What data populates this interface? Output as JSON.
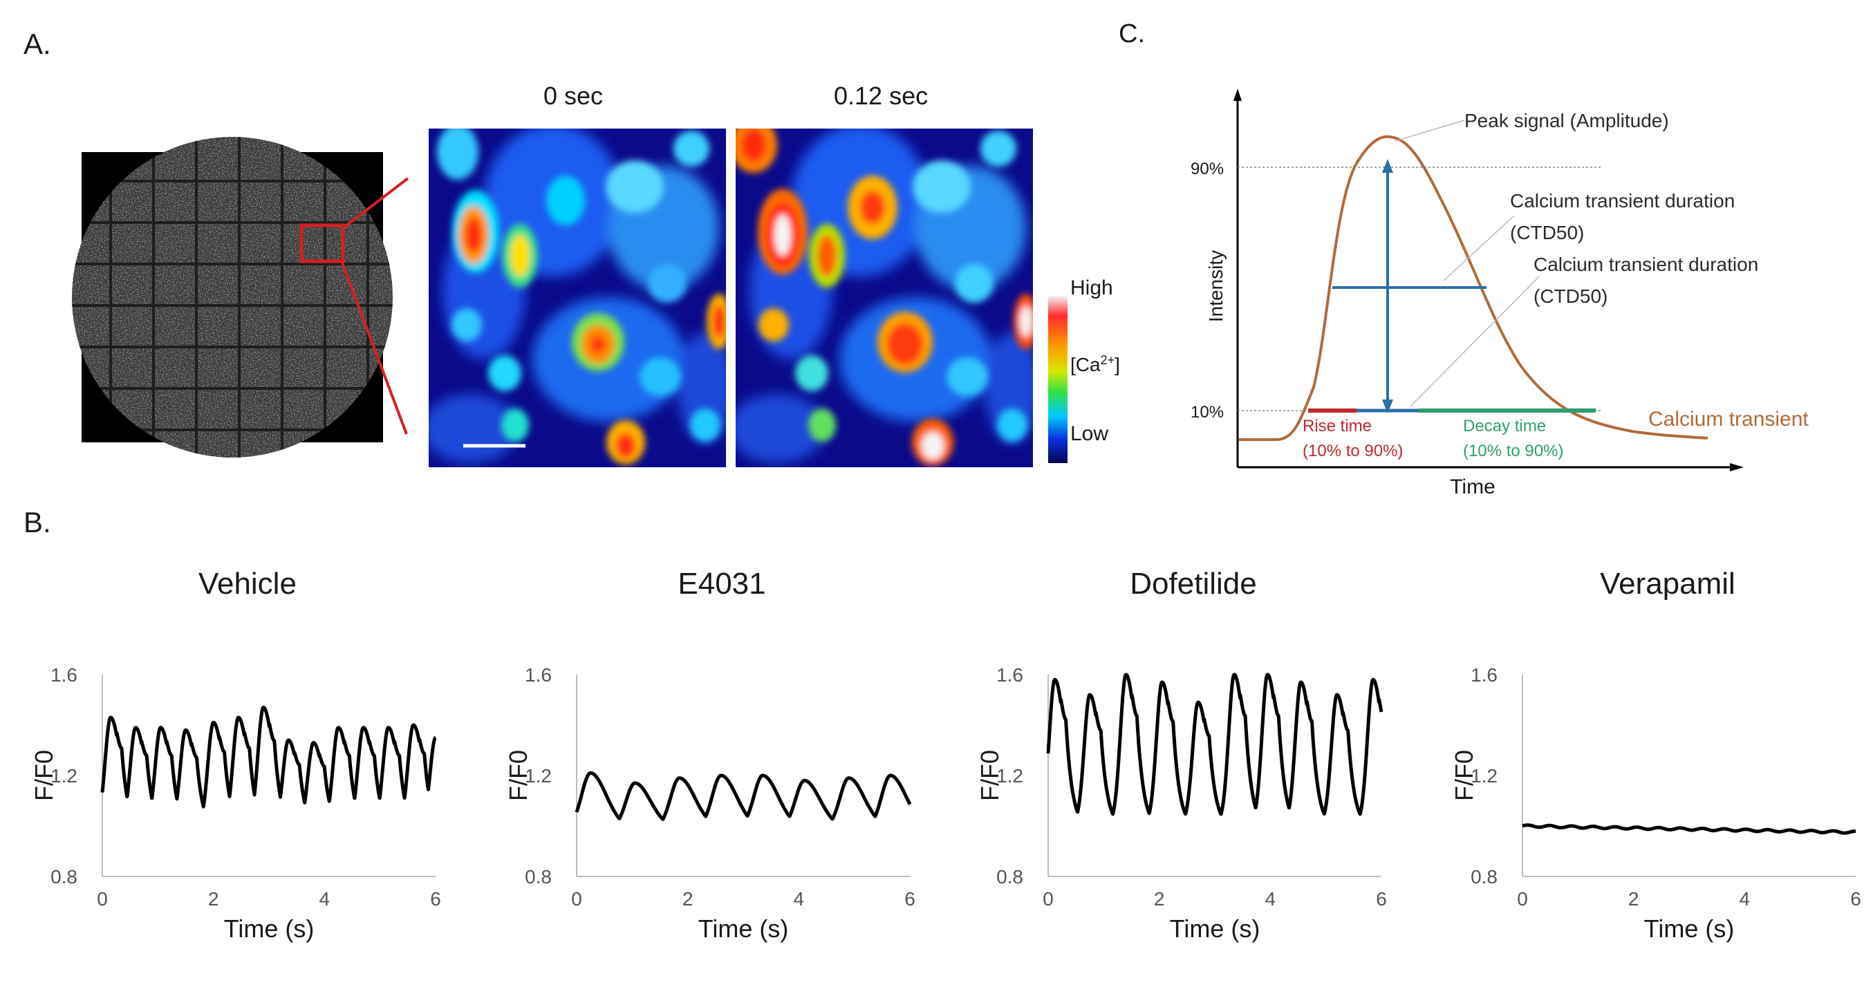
{
  "panel_labels": {
    "a": "A.",
    "b": "B.",
    "c": "C."
  },
  "panel_a": {
    "frame_labels": [
      "0 sec",
      "0.12 sec"
    ],
    "colorbar": {
      "high": "High",
      "mid_prefix": "[Ca",
      "mid_sup": "2+",
      "mid_suffix": "]",
      "low": "Low"
    },
    "colors": {
      "zoom_box": "#d42020",
      "background_dark": "#0a0a8a"
    }
  },
  "panel_c": {
    "y_axis_label": "Intensity",
    "x_axis_label": "Time",
    "tick_90": "90%",
    "tick_10": "10%",
    "peak_label": "Peak signal (Amplitude)",
    "ctd_label_1_line1": "Calcium transient duration",
    "ctd_label_1_line2": "(CTD50)",
    "ctd_label_2_line1": "Calcium transient duration",
    "ctd_label_2_line2": "(CTD50)",
    "rise_line1": "Rise time",
    "rise_line2": "(10% to 90%)",
    "decay_line1": "Decay time",
    "decay_line2": "(10% to 90%)",
    "curve_label": "Calcium transient",
    "colors": {
      "curve": "#b06a3a",
      "arrow": "#2b6ea8",
      "rise": "#c0282d",
      "decay": "#2f9e6e"
    }
  },
  "chart_data": [
    {
      "type": "line",
      "title": "Vehicle",
      "xlabel": "Time (s)",
      "ylabel": "F/F0",
      "xlim": [
        0,
        6
      ],
      "ylim": [
        0.8,
        1.6
      ],
      "x_ticks": [
        "0",
        "2",
        "4",
        "6"
      ],
      "y_ticks": [
        "0.8",
        "1.2",
        "1.6"
      ],
      "peak_times": [
        0.15,
        0.6,
        1.05,
        1.5,
        2.0,
        2.45,
        2.9,
        3.35,
        3.8,
        4.25,
        4.7,
        5.15,
        5.6,
        6.0
      ],
      "peak_values": [
        1.43,
        1.39,
        1.39,
        1.38,
        1.41,
        1.43,
        1.47,
        1.34,
        1.33,
        1.39,
        1.39,
        1.39,
        1.4,
        1.35
      ],
      "baseline": 0.99
    },
    {
      "type": "line",
      "title": "E4031",
      "xlabel": "Time (s)",
      "ylabel": "F/F0",
      "xlim": [
        0,
        6
      ],
      "ylim": [
        0.8,
        1.6
      ],
      "x_ticks": [
        "0",
        "2",
        "4",
        "6"
      ],
      "y_ticks": [
        "0.8",
        "1.2",
        "1.6"
      ],
      "peak_times": [
        0.25,
        1.05,
        1.85,
        2.6,
        3.35,
        4.1,
        4.9,
        5.65
      ],
      "peak_values": [
        1.21,
        1.17,
        1.19,
        1.2,
        1.2,
        1.18,
        1.19,
        1.2
      ],
      "baseline": 0.99
    },
    {
      "type": "line",
      "title": "Dofetilide",
      "xlabel": "Time (s)",
      "ylabel": "F/F0",
      "xlim": [
        0,
        6
      ],
      "ylim": [
        0.8,
        1.6
      ],
      "x_ticks": [
        "0",
        "2",
        "4",
        "6"
      ],
      "y_ticks": [
        "0.8",
        "1.2",
        "1.6"
      ],
      "peak_times": [
        0.12,
        0.75,
        1.4,
        2.05,
        2.7,
        3.35,
        3.95,
        4.55,
        5.2,
        5.85
      ],
      "peak_values": [
        1.58,
        1.52,
        1.6,
        1.57,
        1.49,
        1.6,
        1.6,
        1.57,
        1.52,
        1.58
      ],
      "baseline": 1.01
    },
    {
      "type": "line",
      "title": "Verapamil",
      "xlabel": "Time (s)",
      "ylabel": "F/F0",
      "xlim": [
        0,
        6
      ],
      "ylim": [
        0.8,
        1.6
      ],
      "x_ticks": [
        "0",
        "2",
        "4",
        "6"
      ],
      "y_ticks": [
        "0.8",
        "1.2",
        "1.6"
      ],
      "start_value": 1.0,
      "end_value": 0.975
    }
  ]
}
